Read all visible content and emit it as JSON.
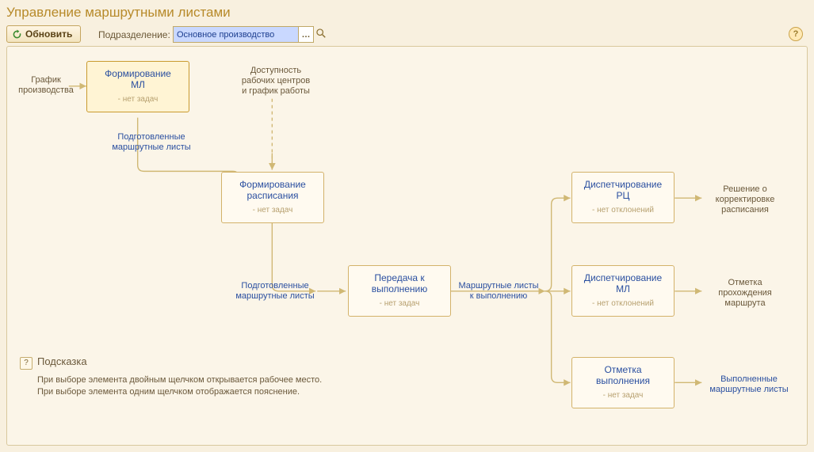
{
  "title": "Управление маршрутными листами",
  "toolbar": {
    "refresh": "Обновить",
    "subdiv_label": "Подразделение:",
    "subdiv_value": "Основное производство"
  },
  "colors": {
    "page_bg": "#f8f0df",
    "panel_bg": "#fbf5e8",
    "border": "#d8c89d",
    "node_border": "#d3b26a",
    "node_bg": "#fffaf0",
    "node_sel_bg": "#fff4d4",
    "title": "#b78a2a",
    "link": "#2a4fa0",
    "muted": "#b7a06f",
    "text": "#6a583a",
    "wire": "#d0b874",
    "wire_dash": "#d0b874"
  },
  "labels": {
    "input": "График\nпроизводства",
    "prepared1": "Подготовленные\nмаршрутные листы",
    "avail": "Доступность\nрабочих центров\nи график работы",
    "prepared2": "Подготовленные\nмаршрутные листы",
    "to_exec": "Маршрутные листы\nк выполнению",
    "decision": "Решение о\nкорректировке\nрасписания",
    "mark_route": "Отметка\nпрохождения\nмаршрута",
    "done": "Выполненные\nмаршрутные листы"
  },
  "nodes": {
    "n1": {
      "cap": "Формирование\nМЛ",
      "sub": "- нет задач"
    },
    "n2": {
      "cap": "Формирование\nрасписания",
      "sub": "- нет задач"
    },
    "n3": {
      "cap": "Передача к\nвыполнению",
      "sub": "- нет задач"
    },
    "n4": {
      "cap": "Диспетчирование\nРЦ",
      "sub": "- нет отклонений"
    },
    "n5": {
      "cap": "Диспетчирование\nМЛ",
      "sub": "- нет отклонений"
    },
    "n6": {
      "cap": "Отметка\nвыполнения",
      "sub": "- нет задач"
    }
  },
  "hint": {
    "title": "Подсказка",
    "body": "При выборе элемента двойным щелчком открывается рабочее место.\nПри выборе элемента одним щелчком отображается пояснение."
  },
  "diagram": {
    "type": "flowchart",
    "edges": [
      {
        "from": "input",
        "to": "n1",
        "style": "solid"
      },
      {
        "from": "n1",
        "to": "prepared1",
        "style": "solid",
        "dir": "down"
      },
      {
        "from": "prepared1",
        "to": "n2",
        "style": "solid",
        "dir": "down"
      },
      {
        "from": "avail",
        "to": "n2",
        "style": "dashed",
        "dir": "down"
      },
      {
        "from": "n2",
        "to": "prepared2",
        "style": "solid",
        "dir": "down-right"
      },
      {
        "from": "prepared2",
        "to": "n3",
        "style": "solid"
      },
      {
        "from": "n3",
        "to": "to_exec",
        "style": "solid"
      },
      {
        "from": "to_exec",
        "to": "n4",
        "style": "solid",
        "branch": "up"
      },
      {
        "from": "to_exec",
        "to": "n5",
        "style": "solid",
        "branch": "mid"
      },
      {
        "from": "to_exec",
        "to": "n6",
        "style": "solid",
        "branch": "down"
      },
      {
        "from": "n4",
        "to": "decision",
        "style": "solid"
      },
      {
        "from": "n5",
        "to": "mark_route",
        "style": "solid"
      },
      {
        "from": "n6",
        "to": "done",
        "style": "solid"
      }
    ]
  }
}
